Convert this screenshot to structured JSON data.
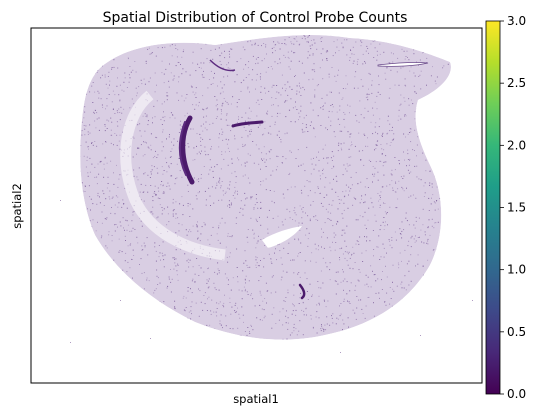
{
  "chart_data": {
    "type": "scatter",
    "title": "Spatial Distribution of Control Probe Counts",
    "xlabel": "spatial1",
    "ylabel": "spatial2",
    "x_ticks_shown": false,
    "y_ticks_shown": false,
    "grid": false,
    "colorbar": {
      "colormap": "viridis",
      "range": [
        0.0,
        3.0
      ],
      "ticks": [
        "0.0",
        "0.5",
        "1.0",
        "1.5",
        "2.0",
        "2.5",
        "3.0"
      ],
      "colors": [
        "#440154",
        "#482878",
        "#3e4989",
        "#31688e",
        "#26828e",
        "#1f9e89",
        "#35b779",
        "#6ece58",
        "#b5de2b",
        "#fde725"
      ]
    },
    "point_color": "#7b5c9a",
    "dominant_value": 0,
    "content": "dense spatial point cloud of a tissue section; nearly all points are at or near 0"
  }
}
